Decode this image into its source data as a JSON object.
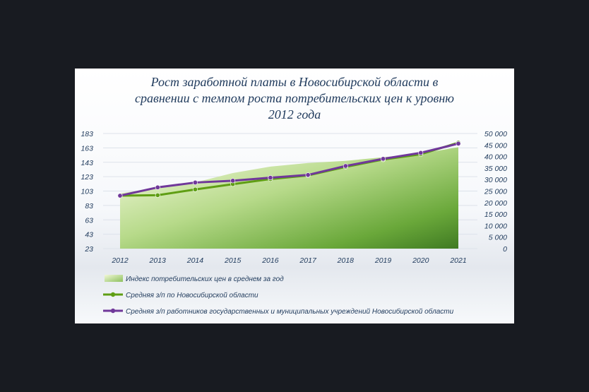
{
  "chart_data": {
    "type": "line",
    "title_lines": [
      "Рост заработной платы в Новосибирской области в",
      "сравнении с темпом роста потребительских цен к уровню",
      "2012 года"
    ],
    "categories": [
      "2012",
      "2013",
      "2014",
      "2015",
      "2016",
      "2017",
      "2018",
      "2019",
      "2020",
      "2021"
    ],
    "y_left": {
      "ticks": [
        "183",
        "163",
        "143",
        "123",
        "103",
        "83",
        "63",
        "43",
        "23"
      ],
      "min": 23,
      "max": 183
    },
    "y_right": {
      "ticks": [
        "50 000",
        "45 000",
        "40 000",
        "35 000",
        "30 000",
        "25 000",
        "20 000",
        "15 000",
        "10 000",
        "5 000",
        "0"
      ],
      "min": 0,
      "max": 50000
    },
    "grid": true,
    "legend_position": "bottom",
    "series": [
      {
        "name": "Индекс потребительских цен в среднем за год",
        "type": "area",
        "axis": "left",
        "values": [
          100,
          107,
          115,
          128,
          137,
          142,
          145,
          150,
          155,
          164
        ],
        "color": "#6aa83a"
      },
      {
        "name": "Средняя з/п по Новосибирской области",
        "type": "line",
        "axis": "right",
        "values": [
          23000,
          23200,
          25700,
          28000,
          30200,
          31800,
          35500,
          38700,
          41000,
          46000
        ],
        "color": "#5f9e14"
      },
      {
        "name": "Средняя з/п работников государственных и муниципальных учреждений Новосибирской области",
        "type": "line",
        "axis": "right",
        "values": [
          23000,
          26600,
          28700,
          29500,
          30800,
          32000,
          35900,
          39000,
          41600,
          45600
        ],
        "color": "#70389a"
      }
    ]
  }
}
